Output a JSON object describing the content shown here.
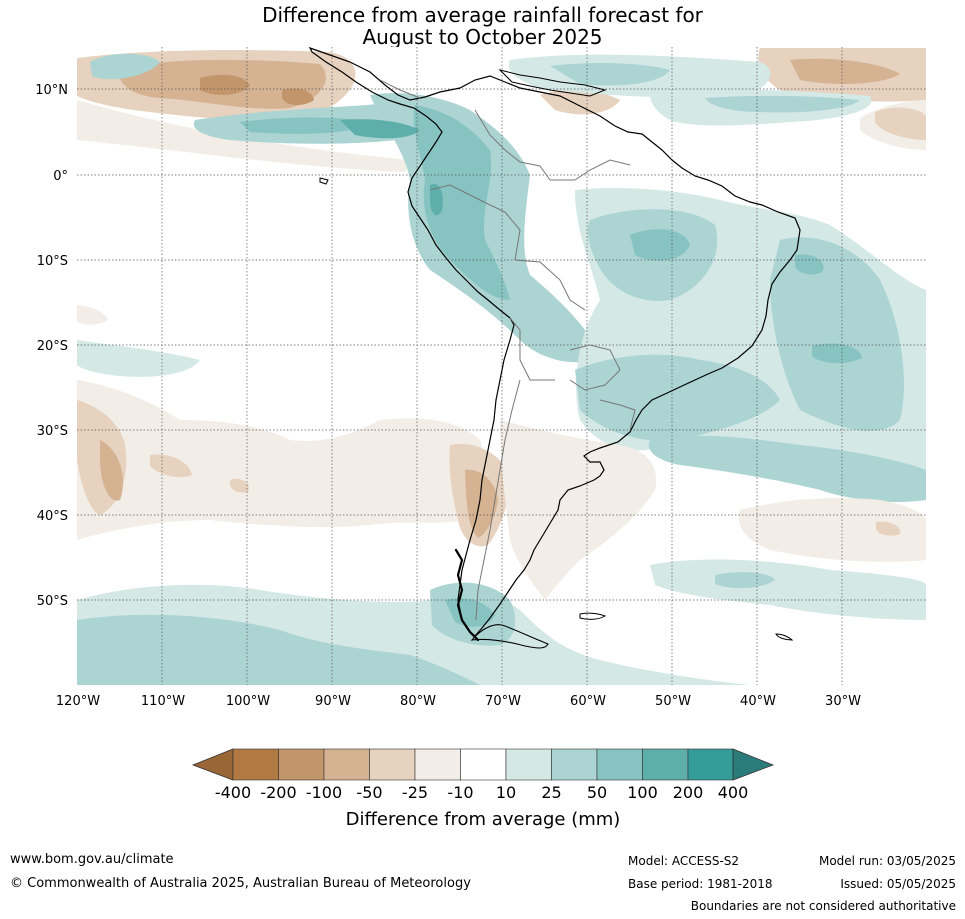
{
  "title": {
    "line1": "Difference from average rainfall forecast for",
    "line2": "August to October 2025"
  },
  "map": {
    "lat_labels": [
      "10°N",
      "0°",
      "10°S",
      "20°S",
      "30°S",
      "40°S",
      "50°S"
    ],
    "lon_labels": [
      "120°W",
      "110°W",
      "100°W",
      "90°W",
      "80°W",
      "70°W",
      "60°W",
      "50°W",
      "40°W",
      "30°W"
    ],
    "extent": {
      "lon_min": -120,
      "lon_max": -20,
      "lat_min": -60,
      "lat_max": 15
    }
  },
  "colorbar": {
    "title": "Difference from average (mm)",
    "tick_labels": [
      "-400",
      "-200",
      "-100",
      "-50",
      "-25",
      "-10",
      "10",
      "25",
      "50",
      "100",
      "200",
      "400"
    ],
    "colors": [
      "#9a6636",
      "#b07a42",
      "#c3956a",
      "#d4b292",
      "#e6d2bf",
      "#f2ede6",
      "#ffffff",
      "#d4e8e6",
      "#abd4d2",
      "#87c3c1",
      "#5eaeab",
      "#349c99",
      "#2a7b79"
    ]
  },
  "footer": {
    "website": "www.bom.gov.au/climate",
    "copyright": "© Commonwealth of Australia 2025, Australian Bureau of Meteorology",
    "model": "Model: ACCESS-S2",
    "base_period": "Base period: 1981-2018",
    "model_run": "Model run: 03/05/2025",
    "issued": "Issued: 05/05/2025",
    "disclaimer": "Boundaries are not considered authoritative"
  }
}
